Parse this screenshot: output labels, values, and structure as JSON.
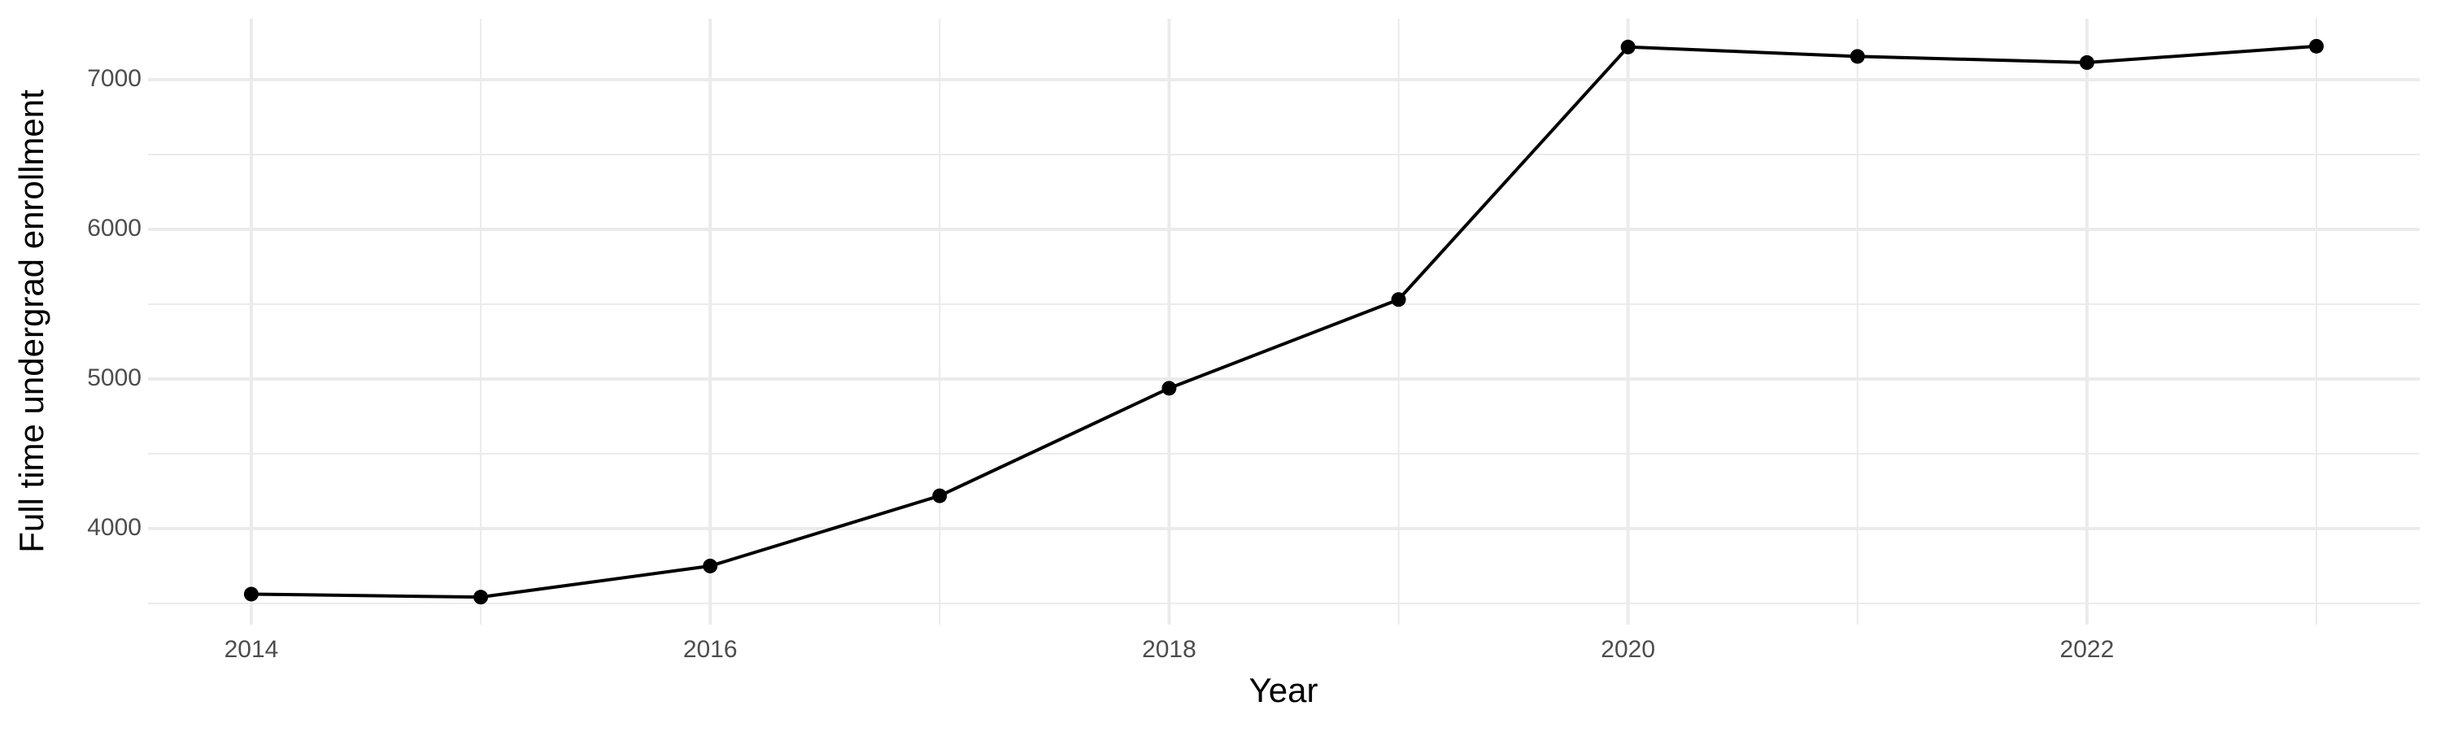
{
  "chart_data": {
    "type": "line",
    "x_label": "Year",
    "y_label": "Full time undergrad enrollment",
    "x": [
      2014,
      2015,
      2016,
      2017,
      2018,
      2019,
      2020,
      2021,
      2022,
      2023
    ],
    "series": [
      {
        "color": "#000000",
        "values": [
          3562,
          3542,
          3750,
          4219,
          4938,
          5531,
          7219,
          7156,
          7115,
          7224
        ]
      }
    ],
    "xlim": [
      2013.55,
      2023.45
    ],
    "xticks": [
      2014,
      2016,
      2018,
      2020,
      2022
    ],
    "xminorticks": [
      2015,
      2017,
      2019,
      2021,
      2023
    ],
    "ylim": [
      3358,
      7408
    ],
    "yticks": [
      4000,
      5000,
      6000,
      7000
    ],
    "yminorticks": [
      3500,
      4500,
      5500,
      6500
    ],
    "grid": true
  }
}
